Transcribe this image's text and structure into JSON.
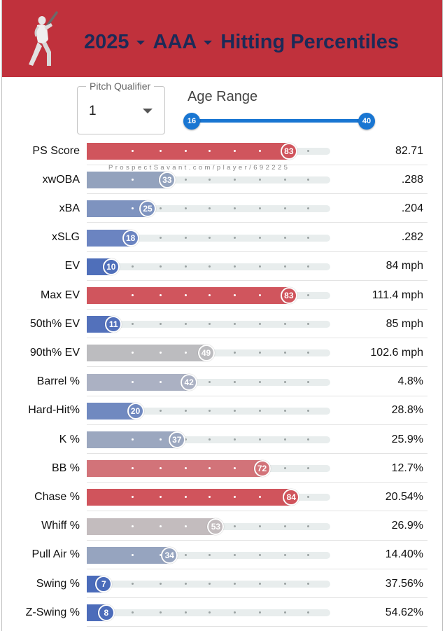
{
  "header": {
    "year": "2025",
    "level": "AAA",
    "title": "Hitting Percentiles",
    "background_color": "#c0313c",
    "title_color": "#1c2a57",
    "logo_icon": "batter-silhouette-icon"
  },
  "controls": {
    "pitch_qualifier": {
      "label": "Pitch Qualifier",
      "value": "1"
    },
    "age_range": {
      "label": "Age Range",
      "min": "16",
      "max": "40",
      "accent_color": "#1976d2"
    }
  },
  "watermark": "ProspectSavant.com/player/692225",
  "metrics": [
    {
      "label": "PS Score",
      "percentile": 83,
      "value": "82.71",
      "color": "#d0555d"
    },
    {
      "label": "xwOBA",
      "percentile": 33,
      "value": ".288",
      "color": "#93a2bd"
    },
    {
      "label": "xBA",
      "percentile": 25,
      "value": ".204",
      "color": "#7e93bf"
    },
    {
      "label": "xSLG",
      "percentile": 18,
      "value": ".282",
      "color": "#6b84c1"
    },
    {
      "label": "EV",
      "percentile": 10,
      "value": "84 mph",
      "color": "#4f6fba"
    },
    {
      "label": "Max EV",
      "percentile": 83,
      "value": "111.4 mph",
      "color": "#d0555d"
    },
    {
      "label": "50th% EV",
      "percentile": 11,
      "value": "85 mph",
      "color": "#5371bb"
    },
    {
      "label": "90th% EV",
      "percentile": 49,
      "value": "102.6 mph",
      "color": "#bcbcbf"
    },
    {
      "label": "Barrel %",
      "percentile": 42,
      "value": "4.8%",
      "color": "#abb1c3"
    },
    {
      "label": "Hard-Hit%",
      "percentile": 20,
      "value": "28.8%",
      "color": "#7089c0"
    },
    {
      "label": "K %",
      "percentile": 37,
      "value": "25.9%",
      "color": "#9ba7bf"
    },
    {
      "label": "BB %",
      "percentile": 72,
      "value": "12.7%",
      "color": "#d27379"
    },
    {
      "label": "Chase %",
      "percentile": 84,
      "value": "20.54%",
      "color": "#d0545c"
    },
    {
      "label": "Whiff %",
      "percentile": 53,
      "value": "26.9%",
      "color": "#c3bcbe"
    },
    {
      "label": "Pull Air %",
      "percentile": 34,
      "value": "14.40%",
      "color": "#96a4bf"
    },
    {
      "label": "Swing %",
      "percentile": 7,
      "value": "37.56%",
      "color": "#4a6bba"
    },
    {
      "label": "Z-Swing %",
      "percentile": 8,
      "value": "54.62%",
      "color": "#4c6cba"
    }
  ]
}
